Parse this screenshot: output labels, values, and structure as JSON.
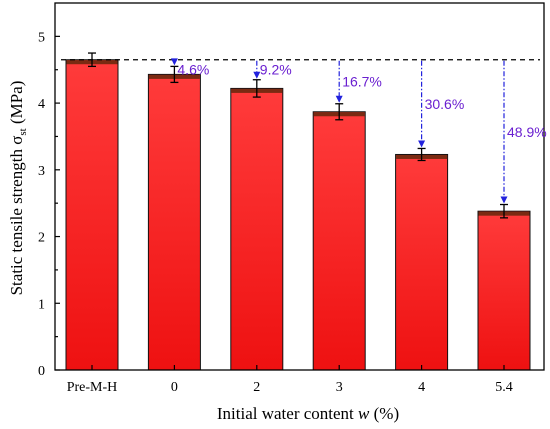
{
  "chart_data": {
    "type": "bar",
    "title": "",
    "xlabel_prefix": "Initial water content ",
    "xlabel_var": "w",
    "xlabel_suffix": " (%)",
    "ylabel_main": "Static tensile strength σ",
    "ylabel_sub": "st",
    "ylabel_unit": " (MPa)",
    "categories": [
      "Pre-M-H",
      "0",
      "2",
      "3",
      "4",
      "5.4"
    ],
    "values": [
      4.65,
      4.43,
      4.22,
      3.87,
      3.23,
      2.38
    ],
    "errors": [
      0.1,
      0.12,
      0.13,
      0.12,
      0.09,
      0.1
    ],
    "ylim": [
      0,
      5.5
    ],
    "yticks": [
      "0",
      "1",
      "2",
      "3",
      "4",
      "5"
    ],
    "reference_line": 4.65,
    "reductions": [
      "",
      "4.6%",
      "9.2%",
      "16.7%",
      "30.6%",
      "48.9%"
    ],
    "grid": false,
    "legend": "none",
    "colors": {
      "bar_bottom": "#ee1111",
      "bar_top": "#ff3b3b",
      "bar_edge": "#111111",
      "bar_cap": "#7a2a12",
      "arrow": "#2222dd",
      "reduction_text": "#6a1fd0",
      "reference": "#000000"
    }
  }
}
